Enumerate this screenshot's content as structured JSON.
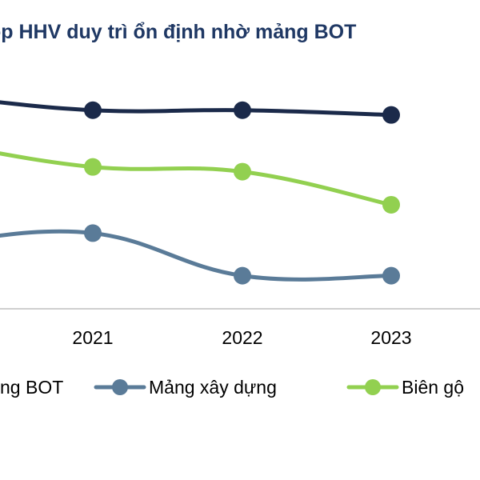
{
  "chart_data": {
    "type": "line",
    "title": "ộp HHV duy trì ổn định nhờ mảng BOT",
    "categories": [
      "2021",
      "2022",
      "2023"
    ],
    "series": [
      {
        "name": "ng BOT",
        "color": "#1b2a4a",
        "values": [
          41,
          41,
          40
        ]
      },
      {
        "name": "Mảng xây dựng",
        "color": "#5a7b98",
        "values": [
          15,
          6,
          6
        ]
      },
      {
        "name": "Biên gộ",
        "color": "#92d050",
        "values": [
          29,
          28,
          21
        ]
      }
    ],
    "ylim": [
      -1,
      55
    ],
    "grid": false,
    "legend_position": "bottom"
  }
}
